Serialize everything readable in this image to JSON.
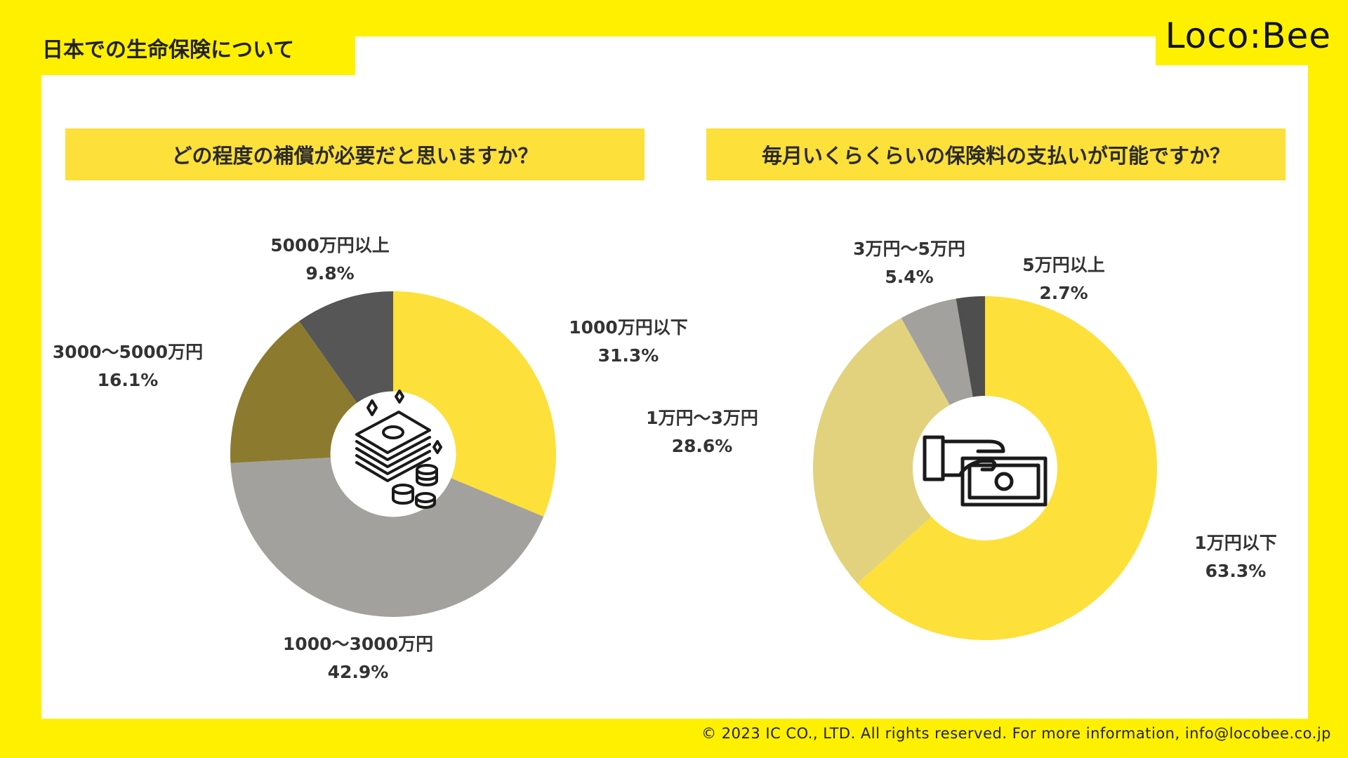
{
  "header": {
    "title": "日本での生命保険について",
    "logo": "Loco:Bee"
  },
  "footer": {
    "copyright": "© 2023 IC CO., LTD. All rights reserved. For more information, info@locobee.co.jp"
  },
  "chart_data": [
    {
      "type": "pie",
      "title": "どの程度の補償が必要だと思いますか？",
      "categories": [
        "1000万円以下",
        "1000〜3000万円",
        "3000〜5000万円",
        "5000万円以上"
      ],
      "values": [
        31.3,
        42.9,
        16.1,
        9.8
      ],
      "value_labels": [
        "31.3%",
        "42.9%",
        "16.1%",
        "9.8%"
      ],
      "colors": [
        "#fde03a",
        "#a3a19e",
        "#8c7b2e",
        "#565656"
      ],
      "center_icon": "money-stack-icon"
    },
    {
      "type": "pie",
      "title": "毎月いくらくらいの保険料の支払いが可能ですか？",
      "categories": [
        "1万円以下",
        "1万円〜3万円",
        "3万円〜5万円",
        "5万円以上"
      ],
      "values": [
        63.3,
        28.6,
        5.4,
        2.7
      ],
      "value_labels": [
        "63.3%",
        "28.6%",
        "5.4%",
        "2.7%"
      ],
      "colors": [
        "#fde03a",
        "#e2d27d",
        "#a3a19e",
        "#4e4e4e"
      ],
      "center_icon": "hand-paying-cash-icon"
    }
  ]
}
